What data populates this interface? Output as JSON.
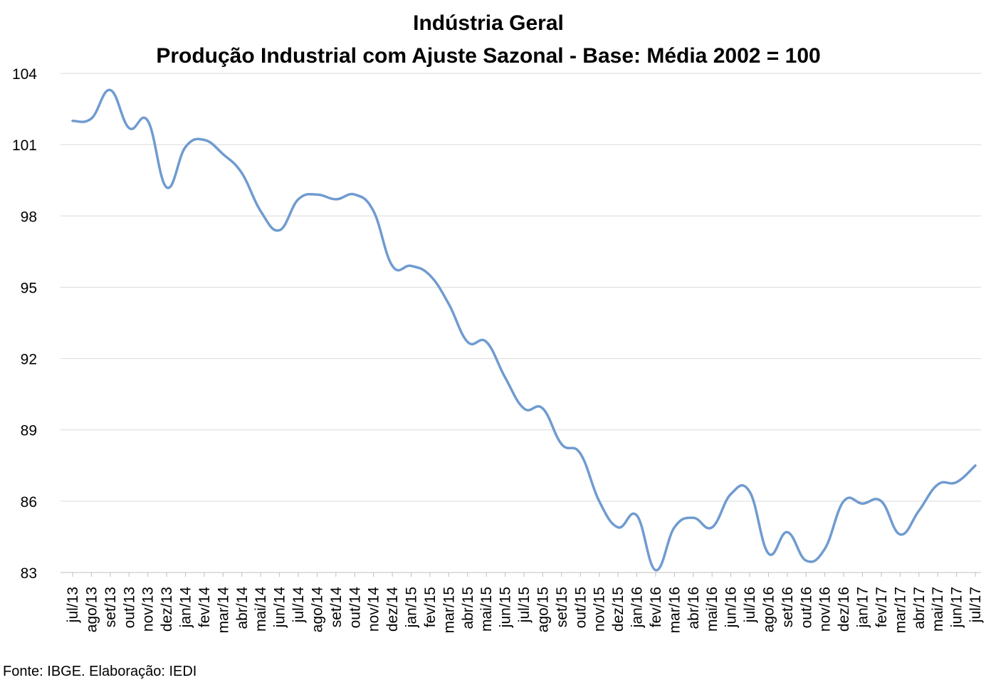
{
  "chart_data": {
    "type": "line",
    "title": "Indústria Geral",
    "subtitle": "Produção Industrial com Ajuste Sazonal - Base: Média 2002 = 100",
    "xlabel": "",
    "ylabel": "",
    "ylim": [
      83,
      104
    ],
    "yticks": [
      83,
      86,
      89,
      92,
      95,
      98,
      101,
      104
    ],
    "grid": true,
    "legend": "none",
    "categories": [
      "jul/13",
      "ago/13",
      "set/13",
      "out/13",
      "nov/13",
      "dez/13",
      "jan/14",
      "fev/14",
      "mar/14",
      "abr/14",
      "mai/14",
      "jun/14",
      "jul/14",
      "ago/14",
      "set/14",
      "out/14",
      "nov/14",
      "dez/14",
      "jan/15",
      "fev/15",
      "mar/15",
      "abr/15",
      "mai/15",
      "jun/15",
      "jul/15",
      "ago/15",
      "set/15",
      "out/15",
      "nov/15",
      "dez/15",
      "jan/16",
      "fev/16",
      "mar/16",
      "abr/16",
      "mai/16",
      "jun/16",
      "jul/16",
      "ago/16",
      "set/16",
      "out/16",
      "nov/16",
      "dez/16",
      "jan/17",
      "fev/17",
      "mar/17",
      "abr/17",
      "mai/17",
      "jun/17",
      "jul/17"
    ],
    "series": [
      {
        "color": "#6f9bd0",
        "values": [
          102.0,
          102.1,
          103.3,
          101.7,
          102.0,
          99.2,
          100.9,
          101.2,
          100.6,
          99.8,
          98.2,
          97.4,
          98.7,
          98.9,
          98.7,
          98.9,
          98.2,
          95.9,
          95.9,
          95.5,
          94.3,
          92.7,
          92.7,
          91.2,
          89.9,
          89.9,
          88.4,
          88.0,
          86.0,
          84.9,
          85.4,
          83.1,
          84.9,
          85.3,
          84.9,
          86.3,
          86.4,
          83.8,
          84.7,
          83.5,
          84.0,
          86.0,
          85.9,
          86.0,
          84.6,
          85.6,
          86.7,
          86.8,
          87.5
        ]
      }
    ]
  },
  "source_note": "Fonte: IBGE. Elaboração: IEDI"
}
